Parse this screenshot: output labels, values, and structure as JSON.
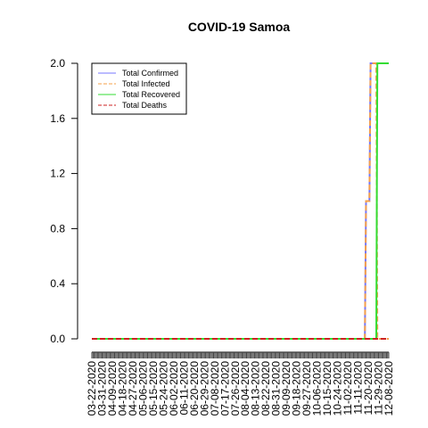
{
  "chart_data": {
    "type": "line",
    "title": "COVID-19 Samoa",
    "xlabel": "",
    "ylabel": "",
    "ylim": [
      0,
      2.0
    ],
    "y_ticks": [
      "0.0",
      "0.4",
      "0.8",
      "1.2",
      "1.6",
      "2.0"
    ],
    "x_start": "03-22-2020",
    "x_end": "12-08-2020",
    "x_tick_labels": [
      "03-22-2020",
      "03-31-2020",
      "04-09-2020",
      "04-18-2020",
      "04-27-2020",
      "05-06-2020",
      "05-15-2020",
      "05-24-2020",
      "06-02-2020",
      "06-11-2020",
      "06-20-2020",
      "06-29-2020",
      "07-08-2020",
      "07-17-2020",
      "07-26-2020",
      "08-04-2020",
      "08-13-2020",
      "08-22-2020",
      "08-31-2020",
      "09-09-2020",
      "09-18-2020",
      "09-27-2020",
      "10-06-2020",
      "10-15-2020",
      "10-24-2020",
      "11-02-2020",
      "11-11-2020",
      "11-20-2020",
      "11-29-2020",
      "12-08-2020"
    ],
    "legend_position": "top-left",
    "grid": false,
    "series": [
      {
        "name": "Total Confirmed",
        "color": "#7777ff",
        "dash": "solid",
        "points": [
          [
            "03-22-2020",
            0
          ],
          [
            "11-17-2020",
            0
          ],
          [
            "11-18-2020",
            1
          ],
          [
            "11-21-2020",
            1
          ],
          [
            "11-22-2020",
            2
          ],
          [
            "12-08-2020",
            2
          ]
        ]
      },
      {
        "name": "Total Infected",
        "color": "#f5a04a",
        "dash": "dashed",
        "points": [
          [
            "03-22-2020",
            0
          ],
          [
            "11-17-2020",
            0
          ],
          [
            "11-18-2020",
            1
          ],
          [
            "11-21-2020",
            1
          ],
          [
            "11-22-2020",
            2
          ],
          [
            "11-27-2020",
            2
          ],
          [
            "11-28-2020",
            0
          ],
          [
            "12-08-2020",
            0
          ]
        ]
      },
      {
        "name": "Total Recovered",
        "color": "#33dd33",
        "dash": "solid",
        "points": [
          [
            "03-22-2020",
            0
          ],
          [
            "11-27-2020",
            0
          ],
          [
            "11-28-2020",
            2
          ],
          [
            "12-08-2020",
            2
          ]
        ]
      },
      {
        "name": "Total Deaths",
        "color": "#cc2222",
        "dash": "dashed",
        "points": [
          [
            "03-22-2020",
            0
          ],
          [
            "12-08-2020",
            0
          ]
        ]
      }
    ]
  }
}
